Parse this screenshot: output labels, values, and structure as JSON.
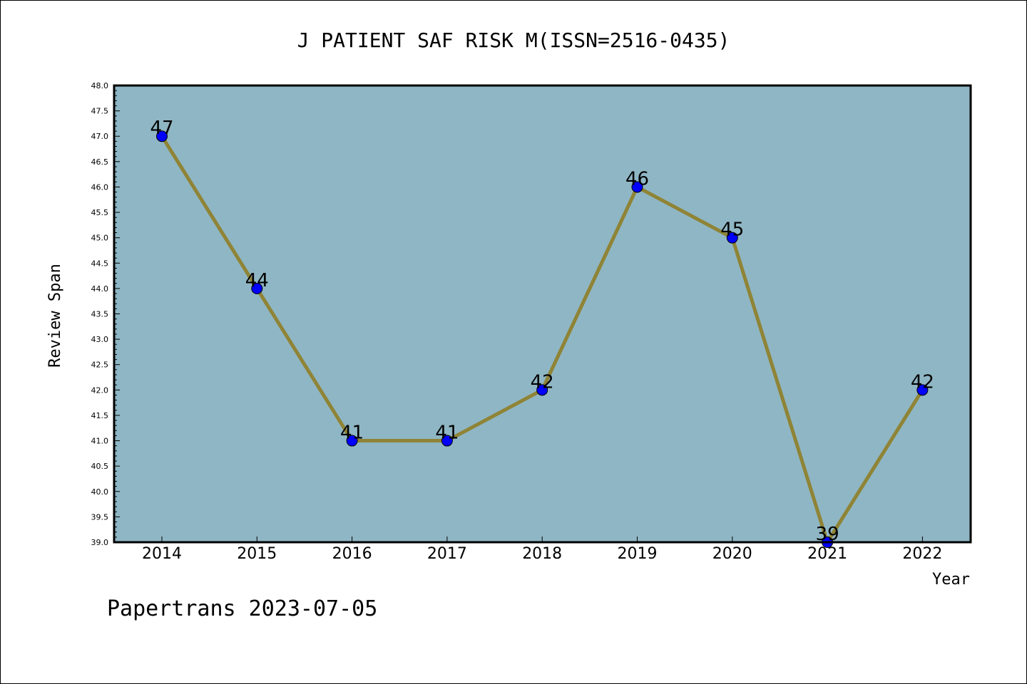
{
  "chart_data": {
    "type": "line",
    "title": "J PATIENT SAF RISK M(ISSN=2516-0435)",
    "xlabel": "Year",
    "ylabel": "Review Span",
    "categories": [
      "2014",
      "2015",
      "2016",
      "2017",
      "2018",
      "2019",
      "2020",
      "2021",
      "2022"
    ],
    "values": [
      47,
      44,
      41,
      41,
      42,
      46,
      45,
      39,
      42
    ],
    "data_labels": [
      "47",
      "44",
      "41",
      "41",
      "42",
      "46",
      "45",
      "39",
      "42"
    ],
    "ylim": [
      39.0,
      48.0
    ],
    "yticks": [
      "39.0",
      "39.5",
      "40.0",
      "40.5",
      "41.0",
      "41.5",
      "42.0",
      "42.5",
      "43.0",
      "43.5",
      "44.0",
      "44.5",
      "45.0",
      "45.5",
      "46.0",
      "46.5",
      "47.0",
      "47.5",
      "48.0"
    ],
    "grid": false,
    "colors": {
      "plot_background": "#8fb6c4",
      "line": "#8f8436",
      "marker": "#0000ff"
    }
  },
  "footer": {
    "text": "Papertrans 2023-07-05"
  }
}
